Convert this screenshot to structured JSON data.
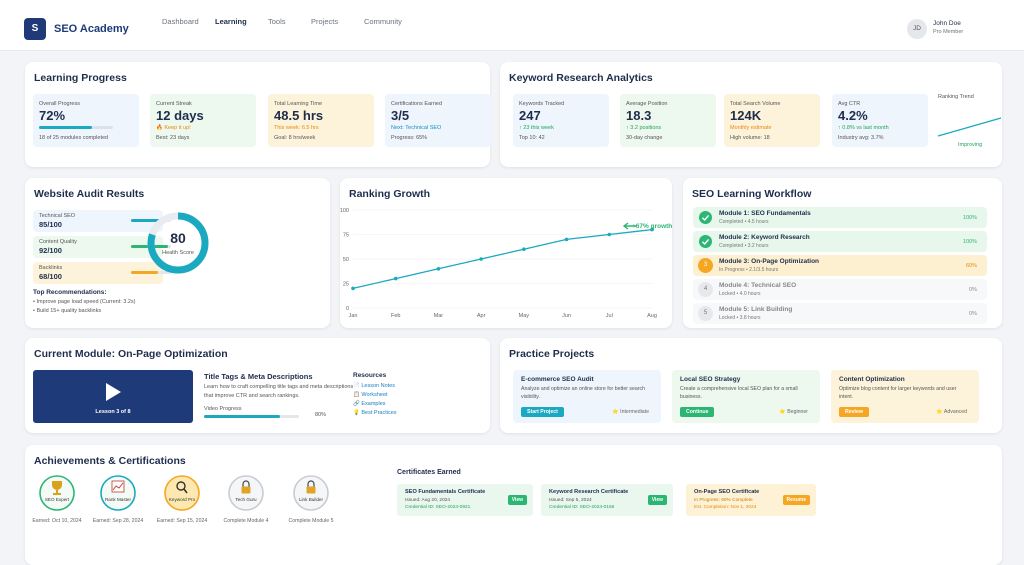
{
  "header": {
    "logo": "S",
    "brand": "SEO Academy",
    "nav": [
      "Dashboard",
      "Learning",
      "Tools",
      "Projects",
      "Community"
    ],
    "active_nav": 1,
    "user": {
      "initials": "JD",
      "name": "John Doe",
      "role": "Pro Member"
    }
  },
  "learning_progress": {
    "title": "Learning Progress",
    "stats": [
      {
        "label": "Overall Progress",
        "value": 72,
        "value_label": "72%",
        "note": "18 of 25 modules completed",
        "color": "#eef5fd"
      },
      {
        "label": "Current Streak",
        "value": "12 days",
        "highlight": "🔥 Keep it up!",
        "highlight_color": "#e8890c",
        "note": "Best: 23 days",
        "color": "#edf8ef"
      },
      {
        "label": "Total Learning Time",
        "value": "48.5 hrs",
        "highlight": "This week: 6.5 hrs",
        "highlight_color": "#e8890c",
        "note": "Goal: 8 hrs/week",
        "color": "#fdf3da"
      },
      {
        "label": "Certifications Earned",
        "value": "3/5",
        "highlight": "Next: Technical SEO",
        "highlight_color": "#1a8fc0",
        "note": "Progress: 65%",
        "color": "#eef5fd"
      }
    ]
  },
  "keyword_analytics": {
    "title": "Keyword Research Analytics",
    "stats": [
      {
        "label": "Keywords Tracked",
        "value": "247",
        "highlight": "↑ 23 this week",
        "highlight_color": "#23a35a",
        "note": "Top 10: 42",
        "color": "#eef5fd"
      },
      {
        "label": "Average Position",
        "value": "18.3",
        "highlight": "↑ 3.2 positions",
        "highlight_color": "#23a35a",
        "note": "30-day change",
        "color": "#edf8ef"
      },
      {
        "label": "Total Search Volume",
        "value": "124K",
        "highlight": "Monthly estimate",
        "highlight_color": "#e8890c",
        "note": "High volume: 18",
        "color": "#fdf3da"
      },
      {
        "label": "Avg CTR",
        "value": "4.2%",
        "highlight": "↑ 0.8% vs last month",
        "highlight_color": "#23a35a",
        "note": "Industry avg: 3.7%",
        "color": "#eef5fd"
      }
    ],
    "trend": {
      "label": "Ranking Trend",
      "status": "Improving",
      "values": [
        10,
        25,
        40,
        55,
        70
      ],
      "color": "#1aa9c0"
    }
  },
  "audit": {
    "title": "Website Audit Results",
    "metrics": [
      {
        "label": "Technical SEO",
        "score": 85,
        "score_label": "85/100",
        "color": "#1aa9c0",
        "background": "#eef5fd"
      },
      {
        "label": "Content Quality",
        "score": 92,
        "score_label": "92/100",
        "color": "#2bb673",
        "background": "#edf8ef"
      },
      {
        "label": "Backlinks",
        "score": 68,
        "score_label": "68/100",
        "color": "#f5a623",
        "background": "#fdf3da"
      }
    ],
    "health": {
      "score": 80,
      "label": "Health Score",
      "range": [
        0,
        100
      ],
      "color": "#1aa9c0"
    },
    "recommendations": {
      "title": "Top Recommendations:",
      "items": [
        "• Improve page load speed (Current: 3.2s)",
        "• Build 15+ quality backlinks"
      ]
    }
  },
  "chart_data": {
    "type": "line",
    "title": "Ranking Growth",
    "categories": [
      "Jan",
      "Feb",
      "Mar",
      "Apr",
      "May",
      "Jun",
      "Jul",
      "Aug"
    ],
    "values": [
      20,
      30,
      40,
      50,
      60,
      70,
      75,
      80
    ],
    "color": "#1aa9c0",
    "ylim": [
      0,
      100
    ],
    "yticks": [
      0,
      25,
      50,
      75,
      100
    ],
    "grid": true,
    "annotation": "+67% growth"
  },
  "workflow": {
    "title": "SEO Learning Workflow",
    "modules": [
      {
        "status": "completed",
        "title": "Module 1: SEO Fundamentals",
        "detail": "Completed • 4.5 hours",
        "percent": "100%"
      },
      {
        "status": "completed",
        "title": "Module 2: Keyword Research",
        "detail": "Completed • 3.2 hours",
        "percent": "100%"
      },
      {
        "status": "in-progress",
        "step": "3",
        "title": "Module 3: On-Page Optimization",
        "detail": "In Progress • 2.1/3.5 hours",
        "percent": "60%"
      },
      {
        "status": "locked",
        "step": "4",
        "title": "Module 4: Technical SEO",
        "detail": "Locked • 4.0 hours",
        "percent": "0%"
      },
      {
        "status": "locked",
        "step": "5",
        "title": "Module 5: Link Building",
        "detail": "Locked • 3.8 hours",
        "percent": "0%"
      }
    ]
  },
  "current_module": {
    "title": "Current Module: On-Page Optimization",
    "lesson": "Lesson 3 of 8",
    "heading": "Title Tags & Meta Descriptions",
    "description": "Learn how to craft compelling title tags and meta descriptions that improve CTR and search rankings.",
    "progress_title": "Video Progress",
    "progress": 80,
    "progress_value_label": "80%",
    "resources": {
      "title": "Resources",
      "items": [
        "📄 Lesson Notes",
        "📋 Worksheet",
        "🔗 Examples",
        "💡 Best Practices"
      ]
    }
  },
  "practice_projects": {
    "title": "Practice Projects",
    "projects": [
      {
        "title": "E-commerce SEO Audit",
        "description": "Analyze and optimize an online store for better search visibility.",
        "action": "Start Project",
        "level": "⭐ Intermediate",
        "color": "#eef5fd",
        "button_color": "#1aa9c0"
      },
      {
        "title": "Local SEO Strategy",
        "description": "Create a comprehensive local SEO plan for a small business.",
        "action": "Continue",
        "level": "⭐ Beginner",
        "color": "#edf8ef",
        "button_color": "#2bb673"
      },
      {
        "title": "Content Optimization",
        "description": "Optimize blog content for larger keywords and user intent.",
        "action": "Review",
        "level": "⭐ Advanced",
        "color": "#fdf3da",
        "button_color": "#f5a623"
      }
    ]
  },
  "achievements": {
    "title": "Achievements & Certifications",
    "badges": [
      {
        "name": "SEO Expert",
        "caption": "Earned: Oct 10, 2024",
        "earned": true,
        "color": "#2bb673",
        "icon": "trophy"
      },
      {
        "name": "Rank Master",
        "caption": "Earned: Sep 28, 2024",
        "earned": true,
        "color": "#1aa9c0",
        "icon": "chart"
      },
      {
        "name": "Keyword Pro",
        "caption": "Earned: Sep 15, 2024",
        "earned": true,
        "color": "#f5a623",
        "icon": "search"
      },
      {
        "name": "Tech Guru",
        "caption": "Complete Module 4",
        "earned": false,
        "color": "#c9ccd2",
        "icon": "lock"
      },
      {
        "name": "Link Builder",
        "caption": "Complete Module 5",
        "earned": false,
        "color": "#c9ccd2",
        "icon": "lock"
      }
    ],
    "certificates": {
      "title": "Certificates Earned",
      "items": [
        {
          "name": "SEO Fundamentals Certificate",
          "issued": "Issued: Aug 20, 2024",
          "credential": "Credential ID: SEO-2024-0921",
          "action": "View",
          "status": "earned"
        },
        {
          "name": "Keyword Research Certificate",
          "issued": "Issued: Sep 5, 2024",
          "credential": "Credential ID: SEO-2024-0156",
          "action": "View",
          "status": "earned"
        },
        {
          "name": "On-Page SEO Certificate",
          "issued": "In Progress: 60% Complete",
          "credential": "Est. Completion: Nov 1, 2024",
          "action": "Resume",
          "status": "in-progress"
        }
      ]
    }
  }
}
